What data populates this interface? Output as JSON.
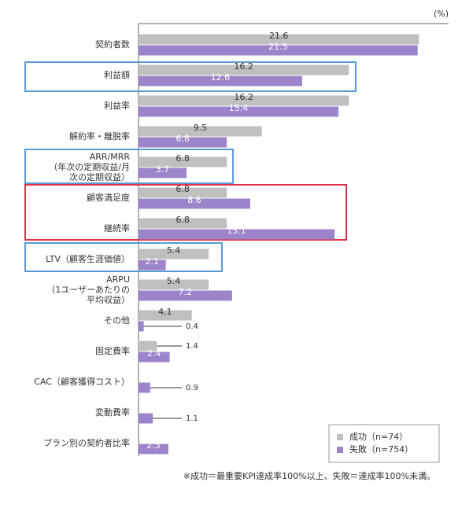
{
  "chart_data": {
    "type": "bar",
    "orientation": "horizontal",
    "unit_label": "(%)",
    "categories": [
      "契約者数",
      "利益額",
      "利益率",
      "解約率・離脱率",
      "ARR/MRR\n（年次の定期収益/月\n次の定期収益）",
      "顧客満足度",
      "継続率",
      "LTV（顧客生涯価値）",
      "ARPU\n（1ユーザーあたりの\n平均収益）",
      "その他",
      "固定費率",
      "CAC（顧客獲得コスト）",
      "変動費率",
      "プラン別の契約者比率"
    ],
    "series": [
      {
        "name": "成功（n=74）",
        "color": "#bfbfbf",
        "values": [
          21.6,
          16.2,
          16.2,
          9.5,
          6.8,
          6.8,
          6.8,
          5.4,
          5.4,
          4.1,
          1.4,
          0,
          0,
          0
        ],
        "value_labels": [
          "21.6",
          "16.2",
          "16.2",
          "9.5",
          "6.8",
          "6.8",
          "6.8",
          "5.4",
          "5.4",
          "4.1",
          "1.4",
          null,
          null,
          null
        ]
      },
      {
        "name": "失敗（n=754）",
        "color": "#9b84c9",
        "values": [
          21.5,
          12.6,
          15.4,
          6.8,
          3.7,
          8.6,
          15.1,
          2.1,
          7.2,
          0.4,
          2.4,
          0.9,
          1.1,
          2.3
        ],
        "value_labels": [
          "21.5",
          "12.6",
          "15.4",
          "6.8",
          "3.7",
          "8.6",
          "15.1",
          "2.1",
          "7.2",
          "0.4",
          "2.4",
          "0.9",
          "1.1",
          "2.3"
        ]
      }
    ],
    "xlim": [
      0,
      24
    ],
    "footnote": "※成功＝最重要KPI達成率100%以上、失敗＝達成率100%未満。"
  }
}
